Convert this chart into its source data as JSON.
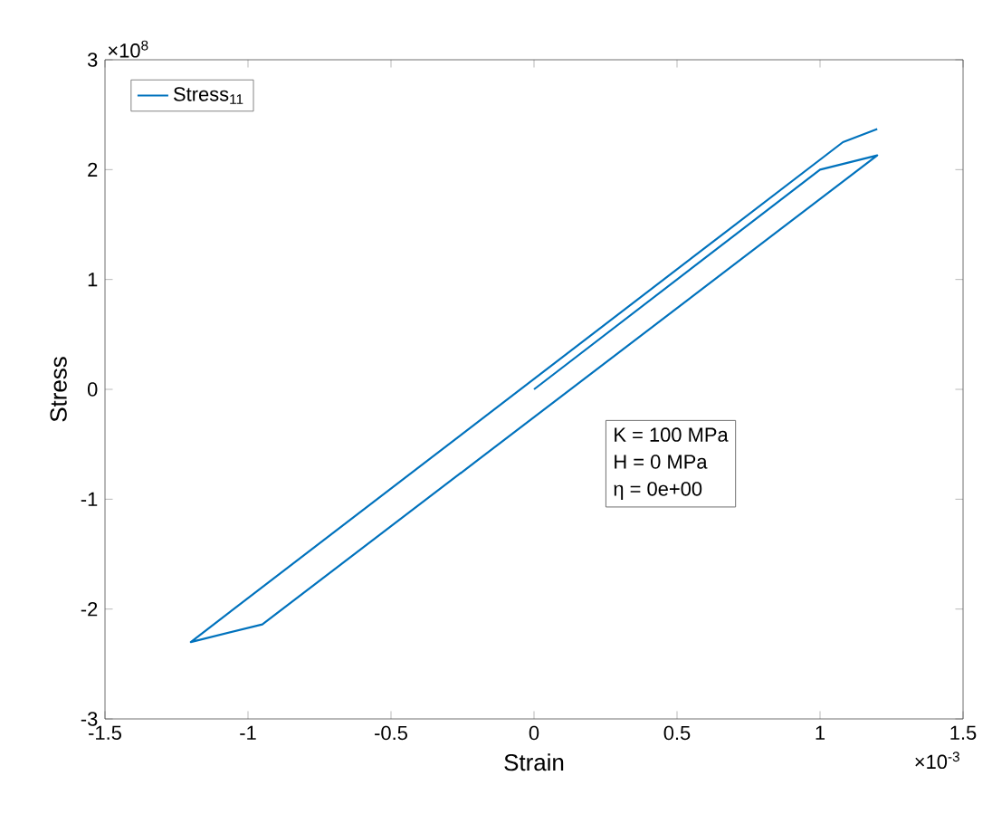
{
  "chart_data": {
    "type": "line",
    "xlabel": "Strain",
    "ylabel": "Stress",
    "xlim": [
      -1.5,
      1.5
    ],
    "xticks": [
      -1.5,
      -1,
      -0.5,
      0,
      0.5,
      1,
      1.5
    ],
    "ylim": [
      -3,
      3
    ],
    "yticks": [
      -3,
      -2,
      -1,
      0,
      1,
      2,
      3
    ],
    "series": [
      {
        "name": "Stress$_{11}$",
        "color": "#0072bd",
        "x": [
          0,
          1.0,
          1.2,
          -0.95,
          -1.2,
          1.08,
          1.2
        ],
        "values": [
          0,
          2.0,
          2.13,
          -2.14,
          -2.3,
          2.25,
          2.37
        ]
      }
    ],
    "legend": "top left",
    "marker": "none",
    "line_style": "solid",
    "grid": false,
    "annotations": [
      "×10$^{8}$",
      "×10$^{-3}$",
      "K = 100 MPa",
      "H = 0 MPa",
      "η = 0e+00"
    ]
  }
}
